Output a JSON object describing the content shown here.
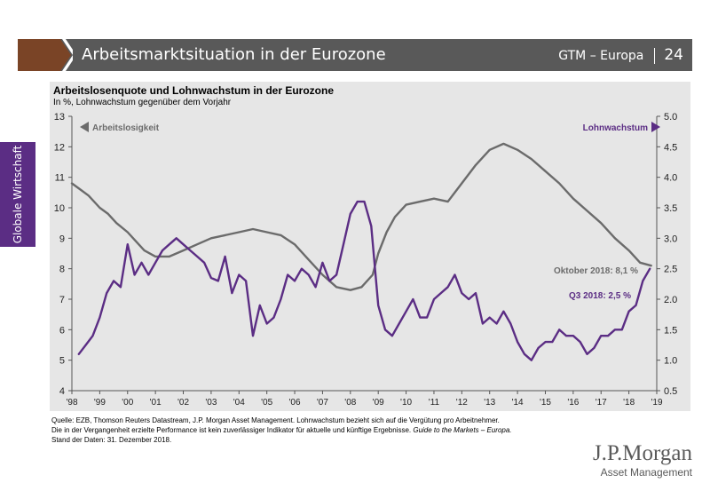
{
  "header": {
    "title": "Arbeitsmarktsituation in der Eurozone",
    "guide": "GTM – Europa",
    "page": "24",
    "chevron_color": "#7a4426",
    "bar_color": "#595959"
  },
  "side_tab": {
    "label": "Globale Wirtschaft",
    "color": "#5b2d84"
  },
  "footer": {
    "line1": "Quelle: EZB, Thomson Reuters Datastream, J.P. Morgan Asset Management. Lohnwachstum bezieht sich auf die Vergütung pro Arbeitnehmer.",
    "line2_prefix": "Die in der Vergangenheit erzielte Performance ist kein zuverlässiger Indikator für aktuelle und künftige Ergebnisse. ",
    "line2_italic": "Guide to the Markets – Europa.",
    "line3": "Stand der Daten: 31. Dezember 2018."
  },
  "logo": {
    "line1": "J.P.Morgan",
    "line2": "Asset Management"
  },
  "chart_data": {
    "type": "line",
    "title": "Arbeitslosenquote und Lohnwachstum in der Eurozone",
    "subtitle": "In %, Lohnwachstum gegenüber dem Vorjahr",
    "x_ticks": [
      "'98",
      "'99",
      "'00",
      "'01",
      "'02",
      "'03",
      "'04",
      "'05",
      "'06",
      "'07",
      "'08",
      "'09",
      "'10",
      "'11",
      "'12",
      "'13",
      "'14",
      "'15",
      "'16",
      "'17",
      "'18",
      "'19"
    ],
    "xlim": [
      1998,
      2019
    ],
    "y_left": {
      "ylim": [
        4,
        13
      ],
      "ticks": [
        4,
        5,
        6,
        7,
        8,
        9,
        10,
        11,
        12,
        13
      ]
    },
    "y_right": {
      "ylim": [
        0.5,
        5.0
      ],
      "ticks": [
        "0.5",
        "1.0",
        "1.5",
        "2.0",
        "2.5",
        "3.0",
        "3.5",
        "4.0",
        "4.5",
        "5.0"
      ]
    },
    "grid": false,
    "series": [
      {
        "name": "Arbeitslosigkeit",
        "axis": "left",
        "color": "#6b6b6b",
        "legend_label": "Arbeitslosigkeit",
        "annotation": "Oktober 2018: 8,1 %",
        "x": [
          1998.0,
          1998.3,
          1998.6,
          1999.0,
          1999.3,
          1999.6,
          2000.0,
          2000.3,
          2000.6,
          2001.0,
          2001.5,
          2002.0,
          2002.5,
          2003.0,
          2003.5,
          2004.0,
          2004.5,
          2005.0,
          2005.5,
          2006.0,
          2006.5,
          2007.0,
          2007.5,
          2008.0,
          2008.4,
          2008.8,
          2009.0,
          2009.3,
          2009.6,
          2010.0,
          2010.5,
          2011.0,
          2011.5,
          2012.0,
          2012.5,
          2013.0,
          2013.5,
          2014.0,
          2014.5,
          2015.0,
          2015.5,
          2016.0,
          2016.5,
          2017.0,
          2017.5,
          2018.0,
          2018.4,
          2018.8
        ],
        "y": [
          10.8,
          10.6,
          10.4,
          10.0,
          9.8,
          9.5,
          9.2,
          8.9,
          8.6,
          8.4,
          8.4,
          8.6,
          8.8,
          9.0,
          9.1,
          9.2,
          9.3,
          9.2,
          9.1,
          8.8,
          8.3,
          7.8,
          7.4,
          7.3,
          7.4,
          7.8,
          8.5,
          9.2,
          9.7,
          10.1,
          10.2,
          10.3,
          10.2,
          10.8,
          11.4,
          11.9,
          12.1,
          11.9,
          11.6,
          11.2,
          10.8,
          10.3,
          9.9,
          9.5,
          9.0,
          8.6,
          8.2,
          8.1
        ]
      },
      {
        "name": "Lohnwachstum",
        "axis": "right",
        "color": "#5b2d84",
        "legend_label": "Lohnwachstum",
        "annotation": "Q3 2018: 2,5 %",
        "x": [
          1998.25,
          1998.5,
          1998.75,
          1999.0,
          1999.25,
          1999.5,
          1999.75,
          2000.0,
          2000.25,
          2000.5,
          2000.75,
          2001.0,
          2001.25,
          2001.5,
          2001.75,
          2002.0,
          2002.25,
          2002.5,
          2002.75,
          2003.0,
          2003.25,
          2003.5,
          2003.75,
          2004.0,
          2004.25,
          2004.5,
          2004.75,
          2005.0,
          2005.25,
          2005.5,
          2005.75,
          2006.0,
          2006.25,
          2006.5,
          2006.75,
          2007.0,
          2007.25,
          2007.5,
          2007.75,
          2008.0,
          2008.25,
          2008.5,
          2008.75,
          2009.0,
          2009.25,
          2009.5,
          2009.75,
          2010.0,
          2010.25,
          2010.5,
          2010.75,
          2011.0,
          2011.25,
          2011.5,
          2011.75,
          2012.0,
          2012.25,
          2012.5,
          2012.75,
          2013.0,
          2013.25,
          2013.5,
          2013.75,
          2014.0,
          2014.25,
          2014.5,
          2014.75,
          2015.0,
          2015.25,
          2015.5,
          2015.75,
          2016.0,
          2016.25,
          2016.5,
          2016.75,
          2017.0,
          2017.25,
          2017.5,
          2017.75,
          2018.0,
          2018.25,
          2018.5,
          2018.75
        ],
        "y": [
          1.1,
          1.25,
          1.4,
          1.7,
          2.1,
          2.3,
          2.2,
          2.9,
          2.4,
          2.6,
          2.4,
          2.6,
          2.8,
          2.9,
          3.0,
          2.9,
          2.8,
          2.7,
          2.6,
          2.35,
          2.3,
          2.7,
          2.1,
          2.4,
          2.3,
          1.4,
          1.9,
          1.6,
          1.7,
          2.0,
          2.4,
          2.3,
          2.5,
          2.4,
          2.2,
          2.6,
          2.3,
          2.4,
          2.9,
          3.4,
          3.6,
          3.6,
          3.2,
          1.9,
          1.5,
          1.4,
          1.6,
          1.8,
          2.0,
          1.7,
          1.7,
          2.0,
          2.1,
          2.2,
          2.4,
          2.1,
          2.0,
          2.1,
          1.6,
          1.7,
          1.6,
          1.8,
          1.6,
          1.3,
          1.1,
          1.0,
          1.2,
          1.3,
          1.3,
          1.5,
          1.4,
          1.4,
          1.3,
          1.1,
          1.2,
          1.4,
          1.4,
          1.5,
          1.5,
          1.8,
          1.9,
          2.3,
          2.5
        ]
      }
    ]
  }
}
